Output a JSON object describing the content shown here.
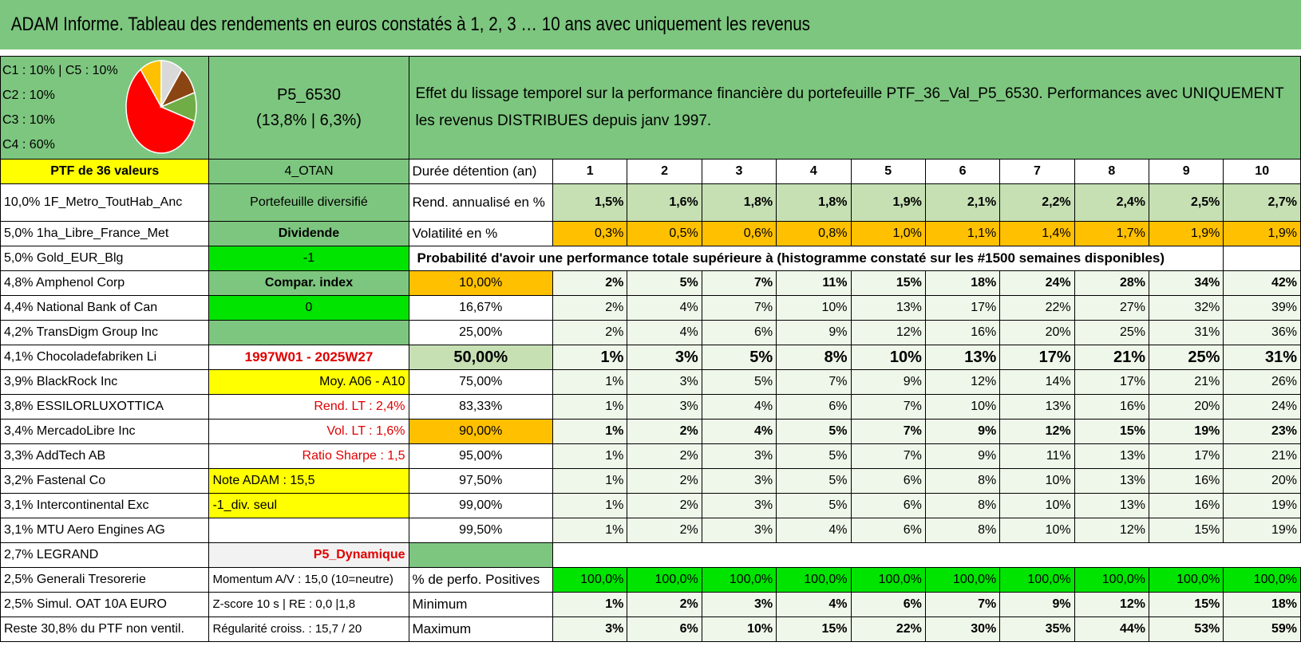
{
  "title": "ADAM Informe. Tableau des rendements en euros constatés à 1, 2, 3 … 10 ans avec uniquement les revenus",
  "allocation": {
    "lines": [
      "C1 : 10% | C5 : 10%",
      "C2 : 10%",
      "C3 : 10%",
      "C4 : 60%"
    ],
    "pie": [
      {
        "label": "C4",
        "value": 60,
        "color": "#ff0000"
      },
      {
        "label": "C5",
        "value": 10,
        "color": "#ffc000"
      },
      {
        "label": "C1",
        "value": 10,
        "color": "#d9d9d9"
      },
      {
        "label": "C2",
        "value": 10,
        "color": "#8b4513"
      },
      {
        "label": "C3",
        "value": 10,
        "color": "#70ad47"
      }
    ]
  },
  "portfolio": {
    "code": "P5_6530",
    "stats": "(13,8% | 6,3%)"
  },
  "description": "Effet du lissage temporel sur la performance financière du portefeuille PTF_36_Val_P5_6530. Performances avec UNIQUEMENT les revenus DISTRIBUES depuis janv 1997.",
  "header": {
    "ptf": "PTF de 36 valeurs",
    "otan": "4_OTAN",
    "duree": "Durée détention (an)",
    "years": [
      "1",
      "2",
      "3",
      "4",
      "5",
      "6",
      "7",
      "8",
      "9",
      "10"
    ]
  },
  "holdings": [
    "10,0% 1F_Metro_ToutHab_Anc",
    "5,0% 1ha_Libre_France_Met",
    "5,0% Gold_EUR_Blg",
    "4,8% Amphenol Corp",
    "4,4% National Bank of Can",
    "4,2% TransDigm Group Inc",
    "4,1% Chocoladefabriken Li",
    "3,9% BlackRock Inc",
    "3,8% ESSILORLUXOTTICA",
    "3,4% MercadoLibre Inc",
    "3,3% AddTech AB",
    "3,2% Fastenal Co",
    "3,1% Intercontinental Exc",
    "3,1% MTU Aero Engines AG",
    "2,7% LEGRAND",
    "2,5% Generali Tresorerie",
    "2,5% Simul. OAT 10A EURO",
    "Reste 30,8% du PTF non ventil."
  ],
  "info": {
    "diversifie": "Portefeuille diversifié",
    "dividende": "Dividende",
    "minus1": "-1",
    "compar": "Compar. index",
    "zero": "0",
    "empty": "",
    "periode": "1997W01 - 2025W27",
    "moy": "Moy. A06 - A10",
    "rend_lt": "Rend. LT : 2,4%",
    "vol_lt": "Vol. LT : 1,6%",
    "sharpe": "Ratio Sharpe : 1,5",
    "note": "Note ADAM : 15,5",
    "div_seul": "-1_div. seul",
    "dynamique": "P5_Dynamique",
    "momentum": "Momentum A/V : 15,0 (10=neutre)",
    "zscore": "Z-score 10 s | RE : 0,0 |1,8",
    "regularite": "Régularité croiss. : 15,7 / 20"
  },
  "rend": {
    "label": "Rend. annualisé en %",
    "values": [
      "1,5%",
      "1,6%",
      "1,8%",
      "1,8%",
      "1,9%",
      "2,1%",
      "2,2%",
      "2,4%",
      "2,5%",
      "2,7%"
    ]
  },
  "vol": {
    "label": "Volatilité en %",
    "values": [
      "0,3%",
      "0,5%",
      "0,6%",
      "0,8%",
      "1,0%",
      "1,1%",
      "1,4%",
      "1,7%",
      "1,9%",
      "1,9%"
    ]
  },
  "proba_title": "Probabilité d'avoir une performance totale supérieure à (histogramme constaté sur les #1500 semaines disponibles)",
  "proba": [
    {
      "p": "10,00%",
      "values": [
        "2%",
        "5%",
        "7%",
        "11%",
        "15%",
        "18%",
        "24%",
        "28%",
        "34%",
        "42%"
      ]
    },
    {
      "p": "16,67%",
      "values": [
        "2%",
        "4%",
        "7%",
        "10%",
        "13%",
        "17%",
        "22%",
        "27%",
        "32%",
        "39%"
      ]
    },
    {
      "p": "25,00%",
      "values": [
        "2%",
        "4%",
        "6%",
        "9%",
        "12%",
        "16%",
        "20%",
        "25%",
        "31%",
        "36%"
      ]
    },
    {
      "p": "50,00%",
      "values": [
        "1%",
        "3%",
        "5%",
        "8%",
        "10%",
        "13%",
        "17%",
        "21%",
        "25%",
        "31%"
      ]
    },
    {
      "p": "75,00%",
      "values": [
        "1%",
        "3%",
        "5%",
        "7%",
        "9%",
        "12%",
        "14%",
        "17%",
        "21%",
        "26%"
      ]
    },
    {
      "p": "83,33%",
      "values": [
        "1%",
        "3%",
        "4%",
        "6%",
        "7%",
        "10%",
        "13%",
        "16%",
        "20%",
        "24%"
      ]
    },
    {
      "p": "90,00%",
      "values": [
        "1%",
        "2%",
        "4%",
        "5%",
        "7%",
        "9%",
        "12%",
        "15%",
        "19%",
        "23%"
      ]
    },
    {
      "p": "95,00%",
      "values": [
        "1%",
        "2%",
        "3%",
        "5%",
        "7%",
        "9%",
        "11%",
        "13%",
        "17%",
        "21%"
      ]
    },
    {
      "p": "97,50%",
      "values": [
        "1%",
        "2%",
        "3%",
        "5%",
        "6%",
        "8%",
        "10%",
        "13%",
        "16%",
        "20%"
      ]
    },
    {
      "p": "99,00%",
      "values": [
        "1%",
        "2%",
        "3%",
        "5%",
        "6%",
        "8%",
        "10%",
        "13%",
        "16%",
        "19%"
      ]
    },
    {
      "p": "99,50%",
      "values": [
        "1%",
        "2%",
        "3%",
        "4%",
        "6%",
        "8%",
        "10%",
        "12%",
        "15%",
        "19%"
      ]
    }
  ],
  "positives": {
    "label": "% de perfo. Positives",
    "values": [
      "100,0%",
      "100,0%",
      "100,0%",
      "100,0%",
      "100,0%",
      "100,0%",
      "100,0%",
      "100,0%",
      "100,0%",
      "100,0%"
    ]
  },
  "minimum": {
    "label": "Minimum",
    "values": [
      "1%",
      "2%",
      "3%",
      "4%",
      "6%",
      "7%",
      "9%",
      "12%",
      "15%",
      "18%"
    ]
  },
  "maximum": {
    "label": "Maximum",
    "values": [
      "3%",
      "6%",
      "10%",
      "15%",
      "22%",
      "30%",
      "35%",
      "44%",
      "53%",
      "59%"
    ]
  }
}
